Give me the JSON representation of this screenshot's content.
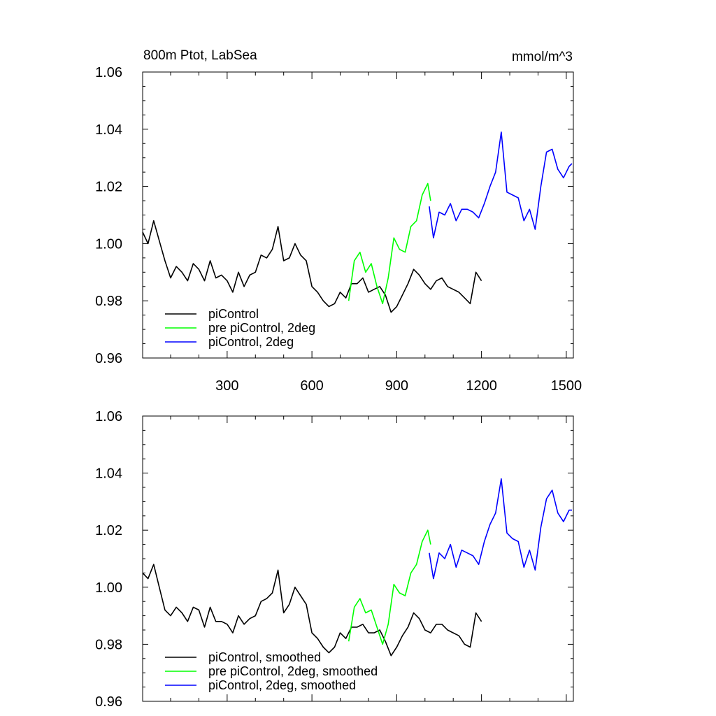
{
  "title_left": "800m Ptot, LabSea",
  "title_right": "mmol/m^3",
  "chart_data": [
    {
      "type": "line",
      "panel": "top",
      "title": "800m Ptot, LabSea",
      "units": "mmol/m^3",
      "xlim": [
        1,
        1525
      ],
      "ylim": [
        0.96,
        1.06
      ],
      "x_ticks": [
        300,
        600,
        900,
        1200,
        1500
      ],
      "x_tick_labels": [
        "300",
        "600",
        "900",
        "1200",
        "1500"
      ],
      "y_ticks": [
        0.96,
        0.98,
        1.0,
        1.02,
        1.04,
        1.06
      ],
      "y_tick_labels": [
        "0.96",
        "0.98",
        "1.00",
        "1.02",
        "1.04",
        "1.06"
      ],
      "legend_position": "bottom-left",
      "series": [
        {
          "name": "piControl",
          "color": "#000000",
          "x": [
            1,
            20,
            40,
            60,
            80,
            100,
            120,
            140,
            160,
            180,
            200,
            220,
            240,
            260,
            280,
            300,
            320,
            340,
            360,
            380,
            400,
            420,
            440,
            460,
            480,
            500,
            520,
            540,
            560,
            580,
            600,
            620,
            640,
            660,
            680,
            700,
            720,
            740,
            760,
            780,
            800,
            820,
            840,
            860,
            880,
            900,
            920,
            940,
            960,
            980,
            1000,
            1020,
            1040,
            1060,
            1080,
            1100,
            1120,
            1140,
            1160,
            1180,
            1200
          ],
          "values": [
            1.004,
            1.0,
            1.008,
            1.001,
            0.994,
            0.988,
            0.992,
            0.99,
            0.987,
            0.993,
            0.991,
            0.987,
            0.994,
            0.988,
            0.989,
            0.987,
            0.983,
            0.99,
            0.985,
            0.989,
            0.99,
            0.996,
            0.995,
            0.998,
            1.006,
            0.994,
            0.995,
            1.0,
            0.996,
            0.994,
            0.985,
            0.983,
            0.98,
            0.978,
            0.979,
            0.983,
            0.981,
            0.986,
            0.986,
            0.988,
            0.983,
            0.984,
            0.985,
            0.982,
            0.976,
            0.978,
            0.982,
            0.986,
            0.991,
            0.989,
            0.986,
            0.984,
            0.987,
            0.988,
            0.985,
            0.984,
            0.983,
            0.981,
            0.979,
            0.99,
            0.987
          ]
        },
        {
          "name": "pre piControl, 2deg",
          "color": "#00ff00",
          "x": [
            730,
            750,
            770,
            790,
            810,
            830,
            850,
            870,
            890,
            910,
            930,
            950,
            970,
            990,
            1010,
            1020
          ],
          "values": [
            0.98,
            0.994,
            0.997,
            0.99,
            0.993,
            0.985,
            0.979,
            0.988,
            1.002,
            0.998,
            0.997,
            1.006,
            1.008,
            1.017,
            1.021,
            1.015
          ]
        },
        {
          "name": "piControl, 2deg",
          "color": "#0000ff",
          "x": [
            1015,
            1030,
            1050,
            1070,
            1090,
            1110,
            1130,
            1150,
            1170,
            1190,
            1210,
            1230,
            1250,
            1270,
            1290,
            1310,
            1330,
            1350,
            1370,
            1390,
            1410,
            1430,
            1450,
            1470,
            1490,
            1510,
            1520
          ],
          "values": [
            1.013,
            1.002,
            1.011,
            1.01,
            1.014,
            1.008,
            1.012,
            1.012,
            1.011,
            1.009,
            1.014,
            1.02,
            1.025,
            1.039,
            1.018,
            1.017,
            1.016,
            1.008,
            1.012,
            1.005,
            1.02,
            1.032,
            1.033,
            1.026,
            1.023,
            1.027,
            1.028
          ]
        }
      ]
    },
    {
      "type": "line",
      "panel": "bottom",
      "xlim": [
        1,
        1525
      ],
      "ylim": [
        0.96,
        1.06
      ],
      "x_ticks": [
        300,
        600,
        900,
        1200,
        1500
      ],
      "y_ticks": [
        0.96,
        0.98,
        1.0,
        1.02,
        1.04,
        1.06
      ],
      "y_tick_labels": [
        "0.96",
        "0.98",
        "1.00",
        "1.02",
        "1.04",
        "1.06"
      ],
      "legend_position": "bottom-left",
      "series": [
        {
          "name": "piControl, smoothed",
          "color": "#000000",
          "x": [
            1,
            20,
            40,
            60,
            80,
            100,
            120,
            140,
            160,
            180,
            200,
            220,
            240,
            260,
            280,
            300,
            320,
            340,
            360,
            380,
            400,
            420,
            440,
            460,
            480,
            500,
            520,
            540,
            560,
            580,
            600,
            620,
            640,
            660,
            680,
            700,
            720,
            740,
            760,
            780,
            800,
            820,
            840,
            860,
            880,
            900,
            920,
            940,
            960,
            980,
            1000,
            1020,
            1040,
            1060,
            1080,
            1100,
            1120,
            1140,
            1160,
            1180,
            1200
          ],
          "values": [
            1.005,
            1.003,
            1.008,
            1.0,
            0.992,
            0.99,
            0.993,
            0.991,
            0.988,
            0.993,
            0.992,
            0.986,
            0.993,
            0.988,
            0.988,
            0.987,
            0.984,
            0.99,
            0.987,
            0.989,
            0.99,
            0.995,
            0.996,
            0.998,
            1.006,
            0.991,
            0.994,
            1.0,
            0.997,
            0.994,
            0.984,
            0.982,
            0.979,
            0.977,
            0.979,
            0.984,
            0.982,
            0.986,
            0.986,
            0.987,
            0.984,
            0.984,
            0.985,
            0.981,
            0.976,
            0.979,
            0.983,
            0.986,
            0.991,
            0.989,
            0.985,
            0.984,
            0.987,
            0.987,
            0.985,
            0.984,
            0.983,
            0.98,
            0.979,
            0.991,
            0.988
          ]
        },
        {
          "name": "pre piControl, 2deg, smoothed",
          "color": "#00ff00",
          "x": [
            730,
            750,
            770,
            790,
            810,
            830,
            850,
            870,
            890,
            910,
            930,
            950,
            970,
            990,
            1010,
            1020
          ],
          "values": [
            0.981,
            0.993,
            0.996,
            0.991,
            0.992,
            0.986,
            0.98,
            0.987,
            1.001,
            0.998,
            0.997,
            1.005,
            1.008,
            1.016,
            1.02,
            1.015
          ]
        },
        {
          "name": "piControl, 2deg, smoothed",
          "color": "#0000ff",
          "x": [
            1015,
            1030,
            1050,
            1070,
            1090,
            1110,
            1130,
            1150,
            1170,
            1190,
            1210,
            1230,
            1250,
            1270,
            1290,
            1310,
            1330,
            1350,
            1370,
            1390,
            1410,
            1430,
            1450,
            1470,
            1490,
            1510,
            1520
          ],
          "values": [
            1.012,
            1.003,
            1.012,
            1.01,
            1.015,
            1.007,
            1.013,
            1.012,
            1.011,
            1.008,
            1.016,
            1.022,
            1.026,
            1.038,
            1.019,
            1.017,
            1.016,
            1.007,
            1.013,
            1.006,
            1.021,
            1.031,
            1.034,
            1.026,
            1.023,
            1.027,
            1.027
          ]
        }
      ]
    }
  ]
}
